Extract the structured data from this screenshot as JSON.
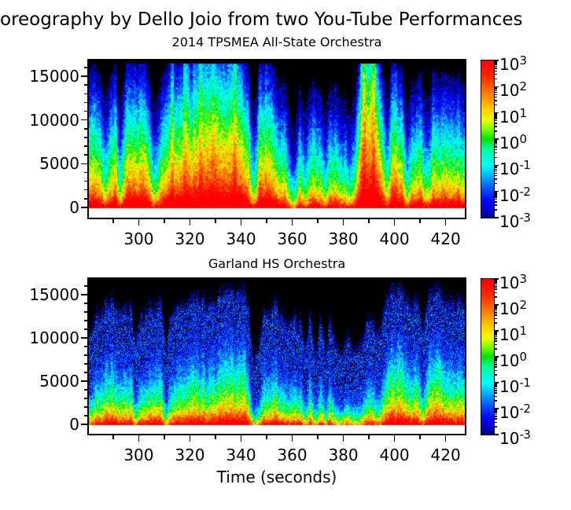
{
  "chart_data": {
    "type": "heatmap",
    "subtype": "spectrogram-pair",
    "suptitle": "oreography by Dello Joio from two You-Tube Performances",
    "xlabel": "Time (seconds)",
    "colorbar": {
      "base": "10",
      "scale": "log10",
      "tick_exponents": [
        3,
        2,
        1,
        0,
        -1,
        -2,
        -3
      ],
      "value_min": 0.001,
      "value_max": 1000,
      "colormap": "jet",
      "colormap_stops": [
        [
          0.0,
          0,
          0,
          140
        ],
        [
          0.1,
          0,
          0,
          255
        ],
        [
          0.18,
          0,
          80,
          255
        ],
        [
          0.33,
          0,
          255,
          255
        ],
        [
          0.44,
          0,
          255,
          150
        ],
        [
          0.5,
          0,
          225,
          0
        ],
        [
          0.56,
          120,
          255,
          0
        ],
        [
          0.62,
          235,
          255,
          0
        ],
        [
          0.7,
          255,
          200,
          0
        ],
        [
          0.8,
          255,
          120,
          0
        ],
        [
          0.9,
          255,
          40,
          0
        ],
        [
          1.0,
          255,
          0,
          0
        ]
      ]
    },
    "subplots": [
      {
        "title": "2014 TPSMEA All-State Orchestra",
        "x_range": [
          280.5,
          427.5
        ],
        "y_range": [
          -1200,
          16800
        ],
        "data_f_max": 16500,
        "x_major_ticks": [
          300,
          320,
          340,
          360,
          380,
          400,
          420
        ],
        "x_minor_ticks": [
          290,
          310,
          330,
          350,
          370,
          390,
          410
        ],
        "y_major_ticks": [
          0,
          5000,
          10000,
          15000
        ],
        "y_minor_ticks": [
          1000,
          2000,
          3000,
          4000,
          6000,
          7000,
          8000,
          9000,
          11000,
          12000,
          13000,
          14000,
          16000
        ],
        "envelope_t0": 281,
        "envelope_dt": 2,
        "envelope": [
          0.78,
          0.8,
          0.74,
          0.58,
          0.8,
          0.82,
          0.52,
          0.84,
          0.88,
          0.86,
          0.84,
          0.82,
          0.62,
          0.56,
          0.78,
          0.84,
          0.88,
          0.92,
          0.9,
          0.94,
          0.9,
          0.93,
          0.95,
          0.92,
          0.94,
          0.92,
          0.95,
          0.93,
          0.95,
          0.92,
          0.9,
          0.86,
          0.5,
          0.84,
          0.86,
          0.82,
          0.78,
          0.74,
          0.68,
          0.5,
          0.42,
          0.72,
          0.45,
          0.7,
          0.72,
          0.64,
          0.48,
          0.7,
          0.66,
          0.6,
          0.55,
          0.48,
          0.7,
          0.96,
          1.0,
          1.0,
          0.98,
          0.85,
          0.55,
          0.85,
          0.84,
          0.8,
          0.48,
          0.72,
          0.74,
          0.7,
          0.58,
          0.74,
          0.76,
          0.74,
          0.72,
          0.74,
          0.72,
          0.7
        ],
        "style": {
          "tilt": 0.3,
          "tilt_quiet": 0.12,
          "band_noise": 0.45,
          "speckle_noise": 0.35,
          "speckle_gain": 1.4,
          "seed": 11
        }
      },
      {
        "title": "Garland HS Orchestra",
        "x_range": [
          280.5,
          427.5
        ],
        "y_range": [
          -1100,
          16800
        ],
        "data_f_max": 16500,
        "x_major_ticks": [
          300,
          320,
          340,
          360,
          380,
          400,
          420
        ],
        "x_minor_ticks": [
          290,
          310,
          330,
          350,
          370,
          390,
          410
        ],
        "y_major_ticks": [
          0,
          5000,
          10000,
          15000
        ],
        "y_minor_ticks": [
          1000,
          2000,
          3000,
          4000,
          6000,
          7000,
          8000,
          9000,
          11000,
          12000,
          13000,
          14000,
          16000
        ],
        "envelope_t0": 281,
        "envelope_dt": 2,
        "envelope": [
          0.5,
          0.58,
          0.62,
          0.64,
          0.66,
          0.64,
          0.66,
          0.64,
          0.62,
          0.4,
          0.6,
          0.62,
          0.6,
          0.62,
          0.64,
          0.38,
          0.62,
          0.66,
          0.64,
          0.66,
          0.68,
          0.66,
          0.68,
          0.66,
          0.68,
          0.7,
          0.72,
          0.74,
          0.72,
          0.74,
          0.72,
          0.68,
          0.3,
          0.34,
          0.6,
          0.62,
          0.64,
          0.62,
          0.58,
          0.56,
          0.54,
          0.56,
          0.34,
          0.56,
          0.34,
          0.54,
          0.36,
          0.52,
          0.4,
          0.36,
          0.4,
          0.38,
          0.36,
          0.4,
          0.5,
          0.52,
          0.5,
          0.48,
          0.72,
          0.76,
          0.74,
          0.72,
          0.7,
          0.66,
          0.68,
          0.52,
          0.7,
          0.72,
          0.8,
          0.74,
          0.7,
          0.68,
          0.66,
          0.64
        ],
        "style": {
          "tilt": 0.3,
          "tilt_quiet": 0.45,
          "band_noise": 0.5,
          "speckle_noise": 0.55,
          "speckle_gain": 2.3,
          "seed": 29
        }
      }
    ]
  },
  "colors": {
    "background": "#ffffff",
    "frame": "#000000",
    "text": "#000000",
    "no_data": "#000000"
  }
}
